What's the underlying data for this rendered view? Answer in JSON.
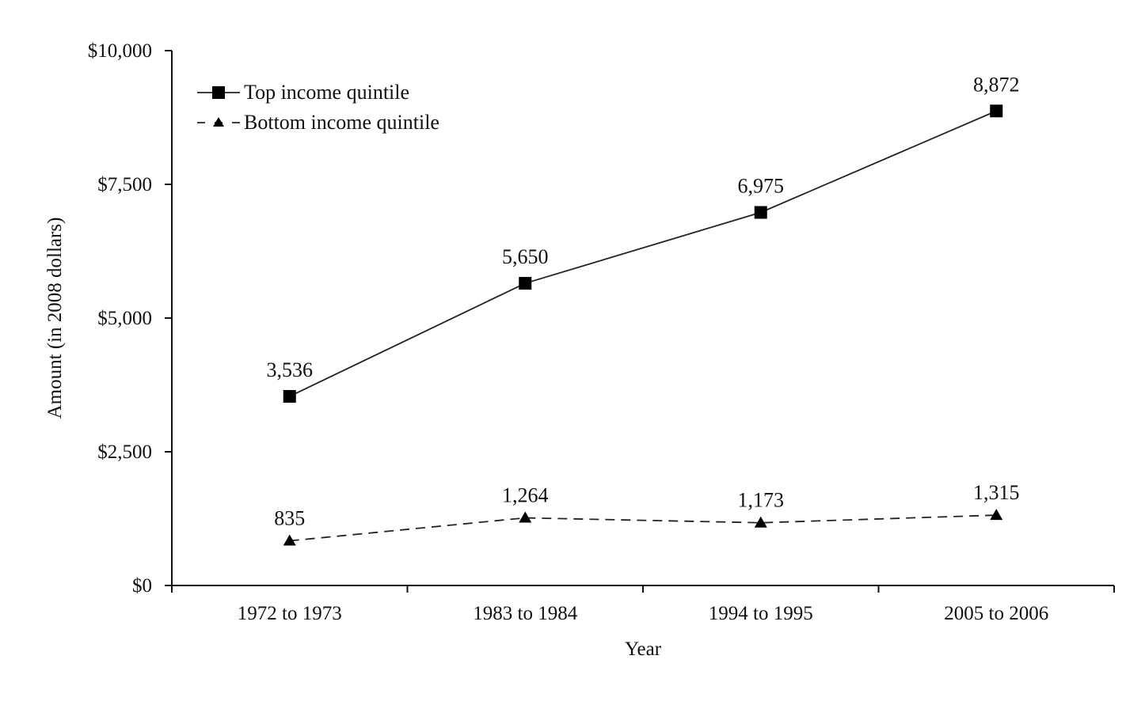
{
  "chart_data": {
    "type": "line",
    "title": "",
    "xlabel": "Year",
    "ylabel": "Amount (in 2008 dollars)",
    "categories": [
      "1972 to 1973",
      "1983 to 1984",
      "1994 to 1995",
      "2005 to 2006"
    ],
    "ylim": [
      0,
      10000
    ],
    "yticks": [
      {
        "value": 0,
        "label": "$0"
      },
      {
        "value": 2500,
        "label": "$2,500"
      },
      {
        "value": 5000,
        "label": "$5,000"
      },
      {
        "value": 7500,
        "label": "$7,500"
      },
      {
        "value": 10000,
        "label": "$10,000"
      }
    ],
    "grid": false,
    "legend_position": "top-left",
    "series": [
      {
        "name": "Top income quintile",
        "marker": "square",
        "line_style": "solid",
        "values": [
          3536,
          5650,
          6975,
          8872
        ],
        "labels": [
          "3,536",
          "5,650",
          "6,975",
          "8,872"
        ]
      },
      {
        "name": "Bottom income quintile",
        "marker": "triangle",
        "line_style": "dashed",
        "values": [
          835,
          1264,
          1173,
          1315
        ],
        "labels": [
          "835",
          "1,264",
          "1,173",
          "1,315"
        ]
      }
    ]
  }
}
